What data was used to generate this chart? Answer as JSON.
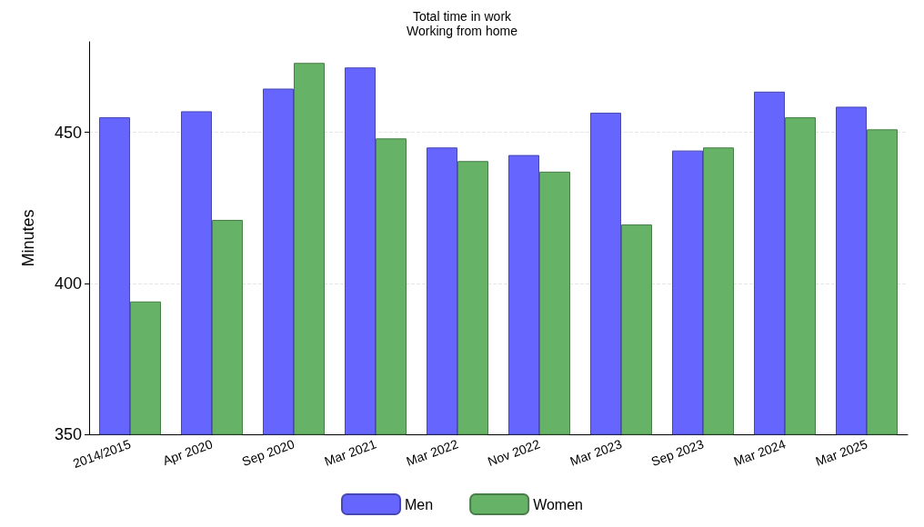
{
  "chart_data": {
    "type": "bar",
    "title": "Total time in work",
    "subtitle": "Working from home",
    "ylabel": "Minutes",
    "categories": [
      "2014/2015",
      "Apr 2020",
      "Sep 2020",
      "Mar 2021",
      "Mar 2022",
      "Nov 2022",
      "Mar 2023",
      "Sep 2023",
      "Mar 2024",
      "Mar 2025"
    ],
    "series": [
      {
        "name": "Men",
        "color": "#6666ff",
        "values": [
          455,
          457,
          464.5,
          471.5,
          445,
          442.5,
          456.5,
          444,
          463.5,
          458.5
        ]
      },
      {
        "name": "Women",
        "color": "#66b266",
        "values": [
          394,
          421,
          473,
          448,
          440.5,
          437,
          419.5,
          445,
          455,
          451
        ]
      }
    ],
    "ylim": [
      350,
      480
    ],
    "yticks": [
      350,
      400,
      450
    ],
    "grid": "y",
    "legend": "bottom"
  }
}
